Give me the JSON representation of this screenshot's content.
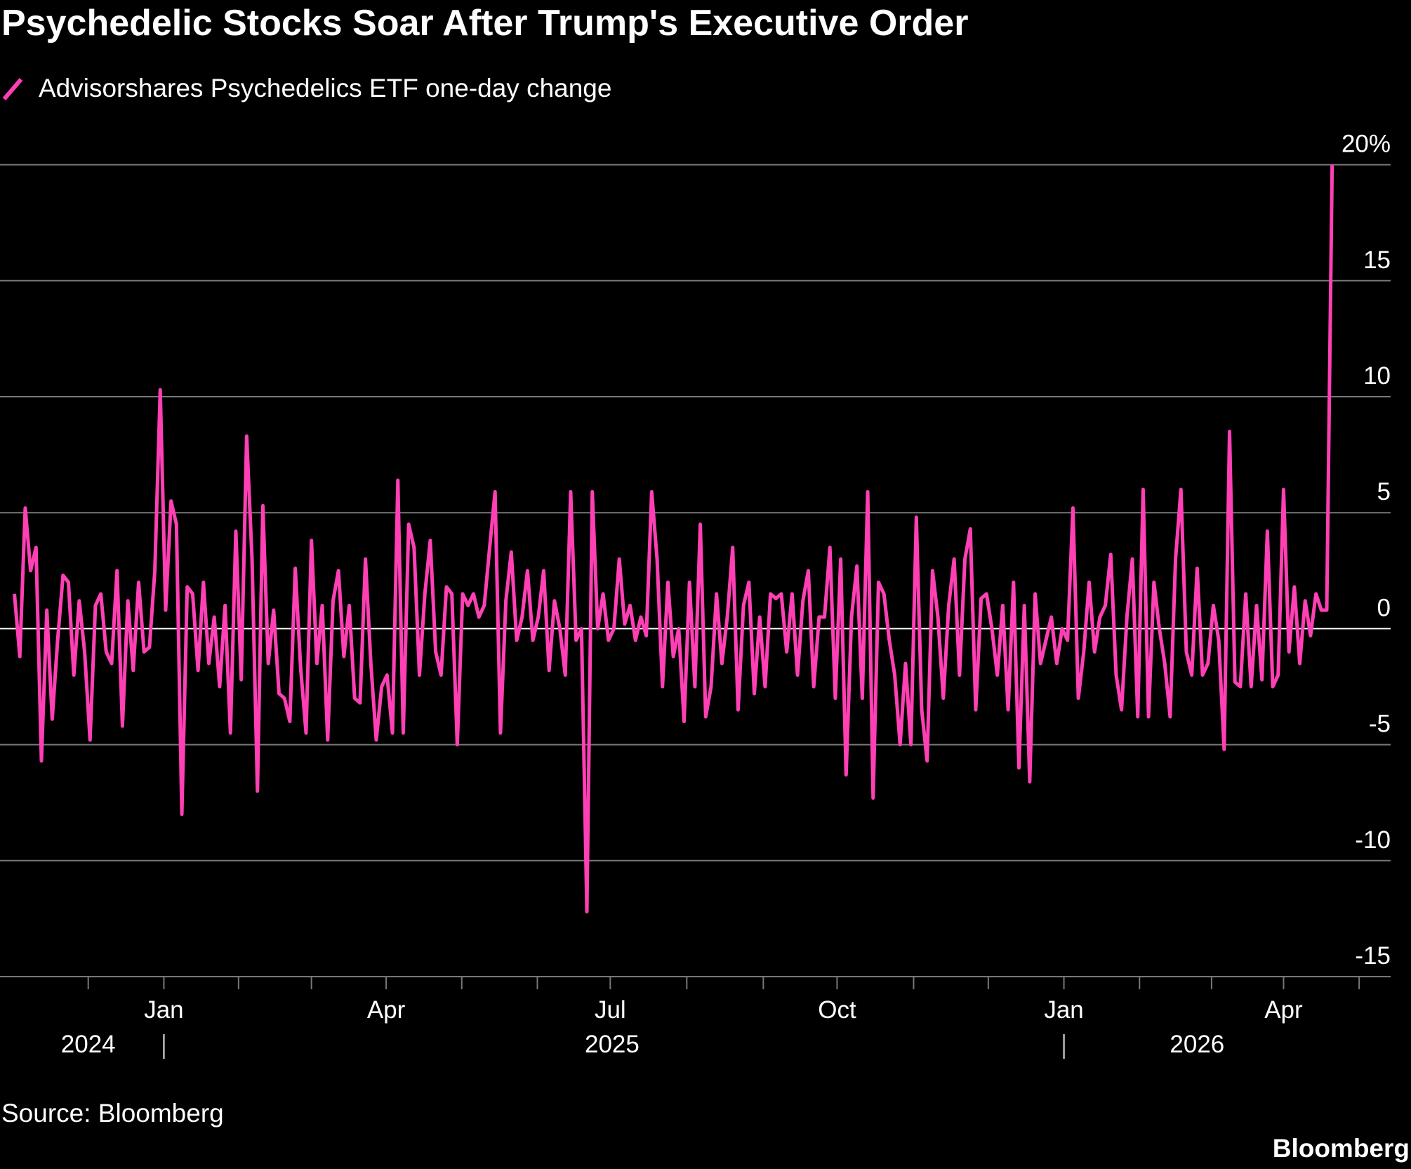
{
  "chart_data": {
    "type": "line",
    "title": "Psychedelic Stocks Soar After Trump's Executive Order",
    "source": "Source: Bloomberg",
    "brand": "Bloomberg",
    "series": [
      {
        "name": "Advisorshares Psychedelics ETF one-day change",
        "color": "#ff3fb4",
        "values": [
          1.5,
          -1.2,
          5.2,
          2.5,
          3.5,
          -5.7,
          0.8,
          -3.9,
          -0.5,
          2.3,
          2.0,
          -2.0,
          1.2,
          -1.0,
          -4.8,
          1.0,
          1.5,
          -1.0,
          -1.5,
          2.5,
          -4.2,
          1.2,
          -1.8,
          2.0,
          -1.0,
          -0.8,
          2.5,
          10.3,
          0.8,
          5.5,
          4.5,
          -8.0,
          1.8,
          1.5,
          -1.8,
          2.0,
          -1.5,
          0.5,
          -2.5,
          1.0,
          -4.5,
          4.2,
          -2.2,
          8.3,
          3.0,
          -7.0,
          5.3,
          -1.5,
          0.8,
          -2.8,
          -3.0,
          -4.0,
          2.6,
          -1.7,
          -4.5,
          3.8,
          -1.5,
          1.0,
          -4.8,
          1.2,
          2.5,
          -1.2,
          1.0,
          -3.0,
          -3.2,
          3.0,
          -1.5,
          -4.8,
          -2.5,
          -2.0,
          -4.5,
          6.4,
          -4.5,
          4.5,
          3.5,
          -2.0,
          1.5,
          3.8,
          -1.0,
          -2.0,
          1.8,
          1.5,
          -5.0,
          1.5,
          1.0,
          1.5,
          0.5,
          1.0,
          3.5,
          5.9,
          -4.5,
          1.2,
          3.3,
          -0.5,
          0.5,
          2.5,
          -0.5,
          0.5,
          2.5,
          -1.8,
          1.2,
          0.0,
          -2.0,
          5.9,
          -0.5,
          0.0,
          -12.2,
          5.9,
          0.0,
          1.5,
          -0.5,
          0.0,
          3.0,
          0.2,
          1.0,
          -0.5,
          0.5,
          -0.3,
          5.9,
          3.0,
          -2.5,
          2.0,
          -1.2,
          0.0,
          -4.0,
          2.0,
          -2.5,
          4.5,
          -3.8,
          -2.5,
          1.5,
          -1.5,
          0.5,
          3.5,
          -3.5,
          1.0,
          2.0,
          -2.8,
          0.5,
          -2.5,
          1.5,
          1.3,
          1.5,
          -1.0,
          1.5,
          -2.0,
          1.2,
          2.5,
          -2.5,
          0.5,
          0.5,
          3.5,
          -3.0,
          3.0,
          -6.3,
          0.5,
          2.7,
          -3.0,
          5.9,
          -7.3,
          2.0,
          1.5,
          -0.5,
          -2.0,
          -5.0,
          -1.5,
          -5.0,
          4.8,
          -3.5,
          -5.7,
          2.5,
          0.5,
          -3.0,
          1.0,
          3.0,
          -2.0,
          3.0,
          4.3,
          -3.5,
          1.3,
          1.5,
          0.0,
          -2.0,
          1.0,
          -3.5,
          2.0,
          -6.0,
          1.0,
          -6.6,
          1.5,
          -1.5,
          -0.5,
          0.5,
          -1.5,
          0.0,
          -0.5,
          5.2,
          -3.0,
          -1.0,
          2.0,
          -1.0,
          0.5,
          1.0,
          3.2,
          -2.0,
          -3.5,
          0.5,
          3.0,
          -3.8,
          6.0,
          -3.8,
          2.0,
          0.0,
          -1.5,
          -3.8,
          3.0,
          6.0,
          -1.0,
          -2.0,
          2.6,
          -2.0,
          -1.5,
          1.0,
          -0.5,
          -5.2,
          8.5,
          -2.3,
          -2.5,
          1.5,
          -2.5,
          1.0,
          -2.2,
          4.2,
          -2.5,
          -2.0,
          6.0,
          -1.0,
          1.8,
          -1.5,
          1.2,
          -0.3,
          1.5,
          0.8,
          0.8,
          20.0
        ]
      }
    ],
    "xlim": [
      -2.67,
      254.83
    ],
    "xticks": [
      {
        "value": 27.67,
        "label": "Jan"
      },
      {
        "value": 68.83,
        "label": "Apr"
      },
      {
        "value": 110.33,
        "label": "Jul"
      },
      {
        "value": 152.33,
        "label": "Oct"
      },
      {
        "value": 194.33,
        "label": "Jan"
      },
      {
        "value": 235,
        "label": "Apr"
      }
    ],
    "xticks_minor": [
      13.67,
      41.5,
      55,
      82.83,
      96.83,
      124.5,
      138.67,
      166.5,
      180.33,
      208.33,
      221.67,
      249
    ],
    "year_labels": [
      {
        "value": 13.67,
        "label": "2024"
      },
      {
        "value": 110.67,
        "label": "2025"
      },
      {
        "value": 219,
        "label": "2026"
      }
    ],
    "ylim": [
      -15,
      20
    ],
    "yticks": [
      -15,
      -10,
      -5,
      0,
      5,
      10,
      15,
      {
        "value": 20,
        "label": "20%"
      }
    ],
    "grid": true
  }
}
